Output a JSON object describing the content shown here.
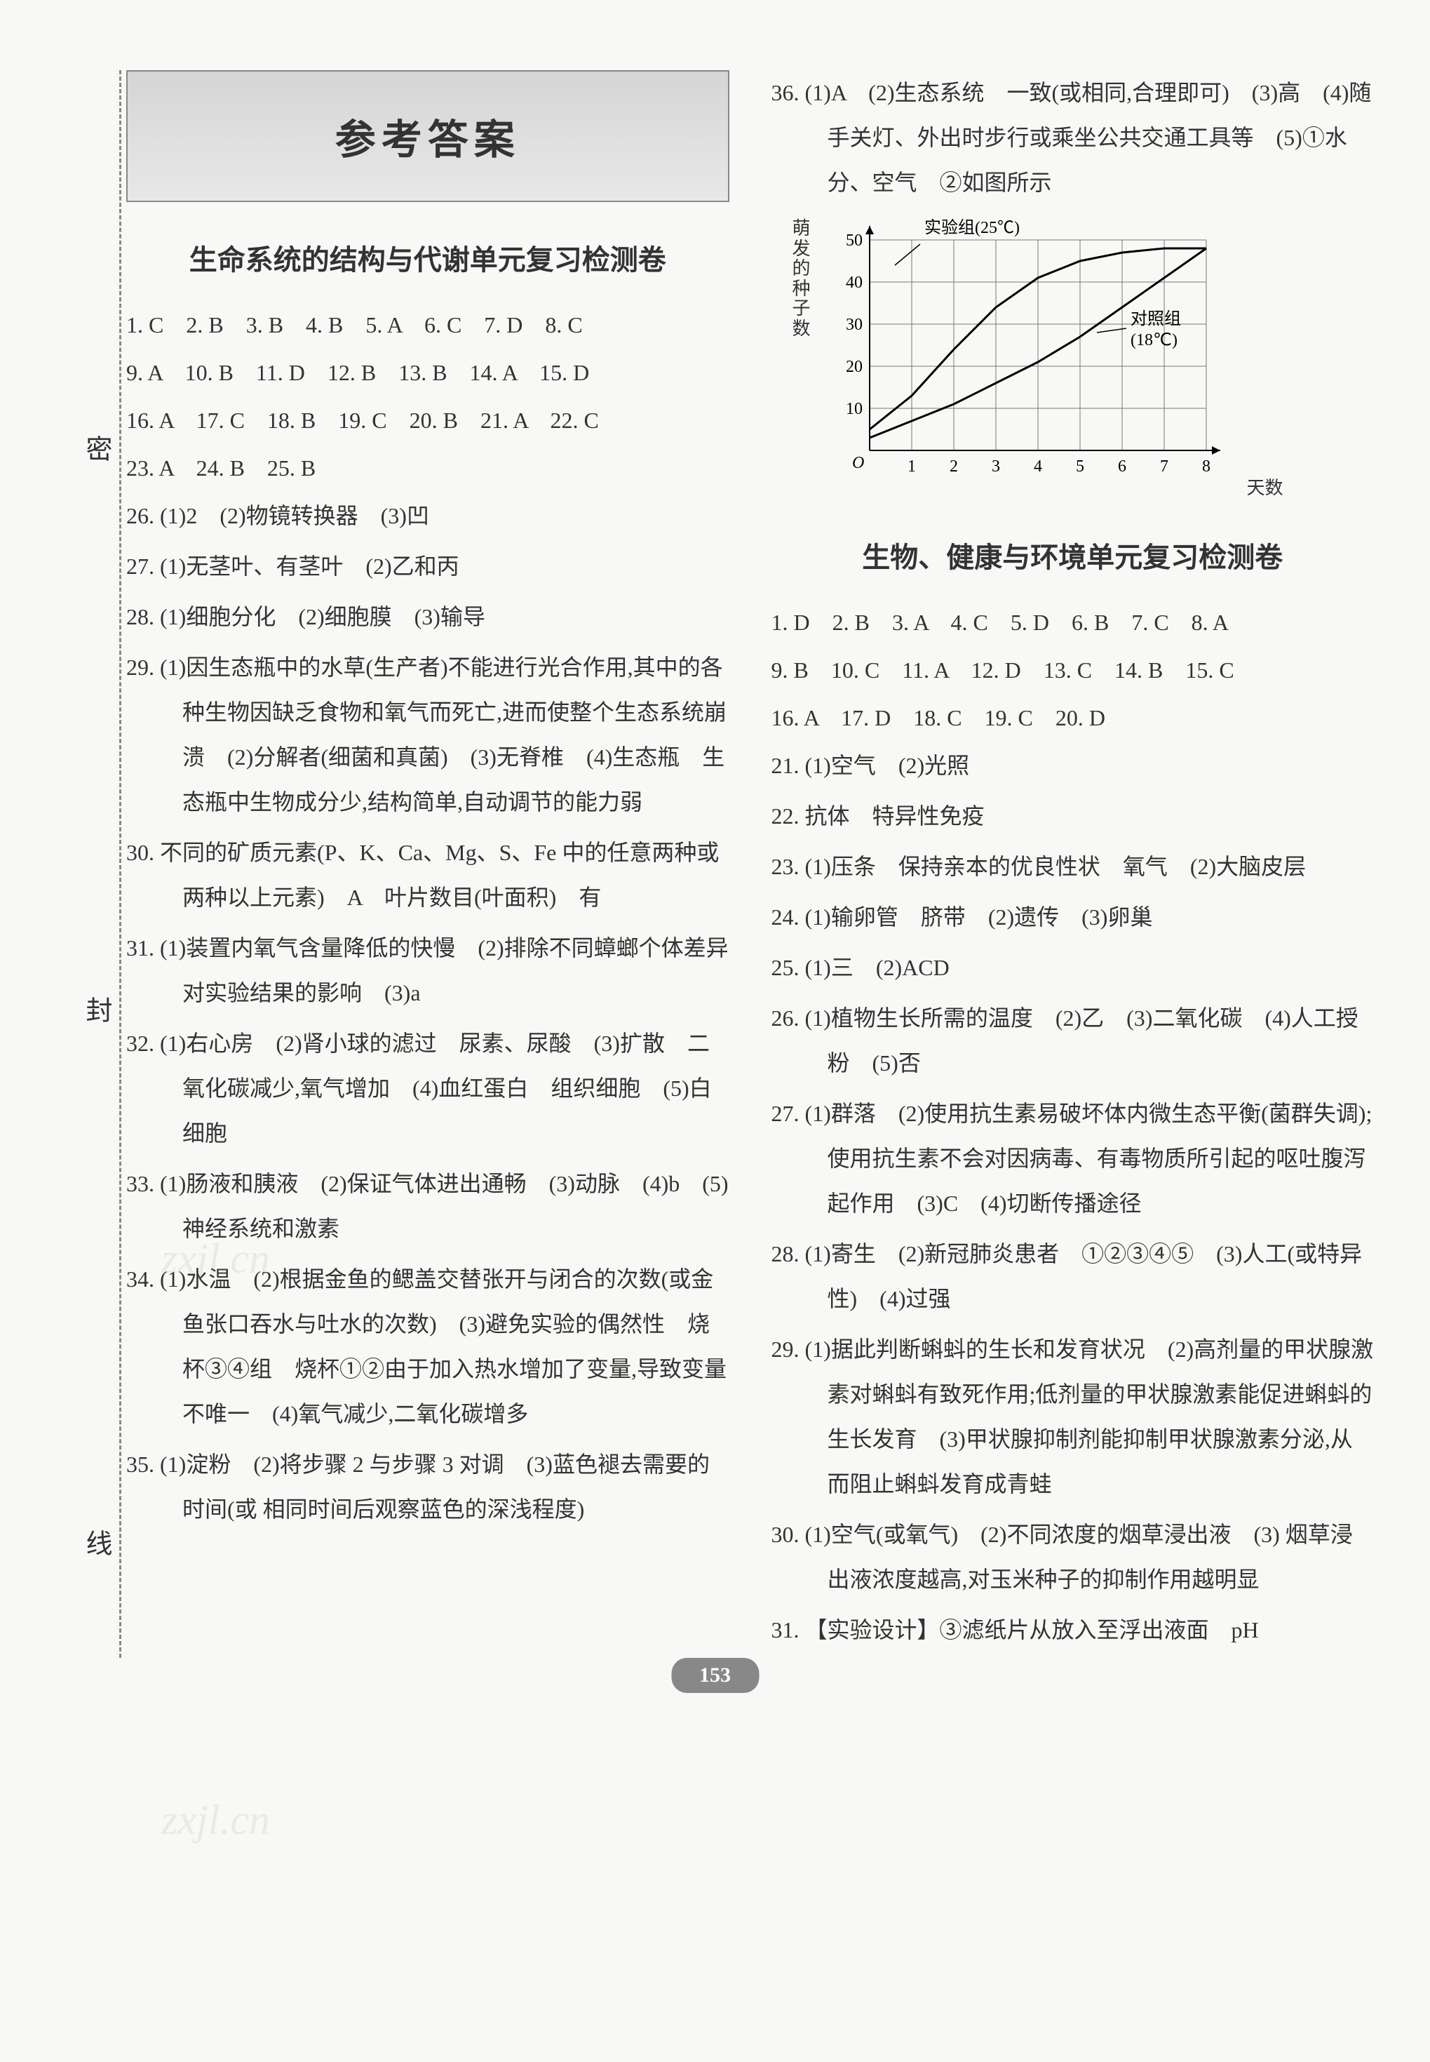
{
  "binding": {
    "top": "密",
    "middle": "封",
    "bottom": "线"
  },
  "main_title": "参考答案",
  "page_number": "153",
  "section1": {
    "title": "生命系统的结构与代谢单元复习检测卷",
    "mc_line1": "1. C　2. B　3. B　4. B　5. A　6. C　7. D　8. C",
    "mc_line2": "9. A　10. B　11. D　12. B　13. B　14. A　15. D",
    "mc_line3": "16. A　17. C　18. B　19. C　20. B　21. A　22. C",
    "mc_line4": "23. A　24. B　25. B",
    "q26": "26. (1)2　(2)物镜转换器　(3)凹",
    "q27": "27. (1)无茎叶、有茎叶　(2)乙和丙",
    "q28": "28. (1)细胞分化　(2)细胞膜　(3)输导",
    "q29": "29. (1)因生态瓶中的水草(生产者)不能进行光合作用,其中的各种生物因缺乏食物和氧气而死亡,进而使整个生态系统崩溃　(2)分解者(细菌和真菌)　(3)无脊椎　(4)生态瓶　生态瓶中生物成分少,结构简单,自动调节的能力弱",
    "q30": "30. 不同的矿质元素(P、K、Ca、Mg、S、Fe 中的任意两种或两种以上元素)　A　叶片数目(叶面积)　有",
    "q31": "31. (1)装置内氧气含量降低的快慢　(2)排除不同蟑螂个体差异对实验结果的影响　(3)a",
    "q32": "32. (1)右心房　(2)肾小球的滤过　尿素、尿酸　(3)扩散　二氧化碳减少,氧气增加　(4)血红蛋白　组织细胞　(5)白细胞",
    "q33": "33. (1)肠液和胰液　(2)保证气体进出通畅　(3)动脉　(4)b　(5)神经系统和激素",
    "q34": "34. (1)水温　(2)根据金鱼的鳃盖交替张开与闭合的次数(或金鱼张口吞水与吐水的次数)　(3)避免实验的偶然性　烧杯③④组　烧杯①②由于加入热水增加了变量,导致变量不唯一　(4)氧气减少,二氧化碳增多",
    "q35": "35. (1)淀粉　(2)将步骤 2 与步骤 3 对调　(3)蓝色褪去需要的时间(或 相同时间后观察蓝色的深浅程度)"
  },
  "section2": {
    "q36": "36. (1)A　(2)生态系统　一致(或相同,合理即可)　(3)高　(4)随手关灯、外出时步行或乘坐公共交通工具等　(5)①水分、空气　②如图所示",
    "title": "生物、健康与环境单元复习检测卷",
    "mc_line1": "1. D　2. B　3. A　4. C　5. D　6. B　7. C　8. A",
    "mc_line2": "9. B　10. C　11. A　12. D　13. C　14. B　15. C",
    "mc_line3": "16. A　17. D　18. C　19. C　20. D",
    "q21": "21. (1)空气　(2)光照",
    "q22": "22. 抗体　特异性免疫",
    "q23": "23. (1)压条　保持亲本的优良性状　氧气　(2)大脑皮层",
    "q24": "24. (1)输卵管　脐带　(2)遗传　(3)卵巢",
    "q25": "25. (1)三　(2)ACD",
    "q26": "26. (1)植物生长所需的温度　(2)乙　(3)二氧化碳　(4)人工授粉　(5)否",
    "q27": "27. (1)群落　(2)使用抗生素易破坏体内微生态平衡(菌群失调);使用抗生素不会对因病毒、有毒物质所引起的呕吐腹泻起作用　(3)C　(4)切断传播途径",
    "q28": "28. (1)寄生　(2)新冠肺炎患者　①②③④⑤　(3)人工(或特异性)　(4)过强",
    "q29": "29. (1)据此判断蝌蚪的生长和发育状况　(2)高剂量的甲状腺激素对蝌蚪有致死作用;低剂量的甲状腺激素能促进蝌蚪的生长发育　(3)甲状腺抑制剂能抑制甲状腺激素分泌,从而阻止蝌蚪发育成青蛙",
    "q30": "30. (1)空气(或氧气)　(2)不同浓度的烟草浸出液　(3) 烟草浸出液浓度越高,对玉米种子的抑制作用越明显",
    "q31": "31. 【实验设计】③滤纸片从放入至浮出液面　pH"
  },
  "chart": {
    "ylabel": "萌发的种子数",
    "xlabel": "天数",
    "series1_label": "实验组(25℃)",
    "series2_label": "对照组 (18℃)",
    "ylim": [
      0,
      50
    ],
    "xlim": [
      0,
      8
    ],
    "ytick_step": 10,
    "xtick_step": 1,
    "grid_color": "#777",
    "line_color": "#000",
    "bg_color": "#f8f8f6",
    "experimental_points": [
      [
        0,
        5
      ],
      [
        1,
        13
      ],
      [
        2,
        24
      ],
      [
        3,
        34
      ],
      [
        4,
        41
      ],
      [
        5,
        45
      ],
      [
        6,
        47
      ],
      [
        7,
        48
      ],
      [
        8,
        48
      ]
    ],
    "control_points": [
      [
        0,
        3
      ],
      [
        1,
        7
      ],
      [
        2,
        11
      ],
      [
        3,
        16
      ],
      [
        4,
        21
      ],
      [
        5,
        27
      ],
      [
        6,
        34
      ],
      [
        7,
        41
      ],
      [
        8,
        48
      ]
    ]
  }
}
